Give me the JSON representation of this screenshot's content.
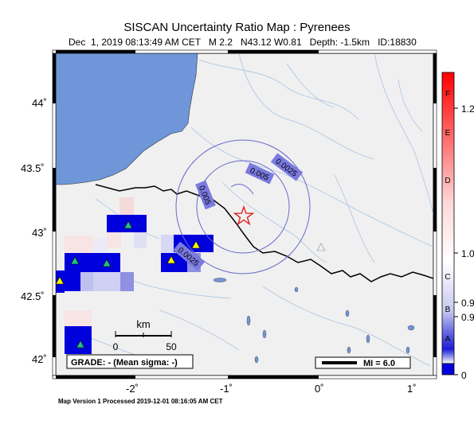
{
  "header": {
    "title": "SISCAN Uncertainty Ratio Map : Pyrenees",
    "date": "Dec  1, 2019 08:13:49 AM CET",
    "magnitude": "M 2.2",
    "location": "N43.12 W0.81",
    "depth": "Depth: -1.5km",
    "id": "ID:18830"
  },
  "axes": {
    "lat_labels": [
      "44˚",
      "43.5˚",
      "43˚",
      "42.5˚",
      "42˚"
    ],
    "lon_labels": [
      "-2˚",
      "-1˚",
      "0˚",
      "1˚"
    ]
  },
  "contours": [
    "0.0025",
    "0.005",
    "0.005",
    "0.0025"
  ],
  "scale_bar": {
    "unit": "km",
    "ticks": [
      "0",
      "50"
    ]
  },
  "grade_box": "GRADE: - (Mean sigma: -)",
  "mi_box": "MI = 6.0",
  "colorbar": {
    "letters": [
      "F",
      "E",
      "D",
      "C",
      "B",
      "A"
    ],
    "values": [
      "1.2",
      "1.0",
      "0.9",
      "0.9",
      "0"
    ]
  },
  "footer": "Map Version 1 Processed 2019-12-01 08:16:05 AM CET",
  "colors": {
    "sea": "#6f96d8",
    "land": "#f0f0f0",
    "river": "#a8c4e4",
    "border": "#000000",
    "blue_cell": "#0000dd",
    "epicenter": "#e02020",
    "station_yellow": "#f5f500",
    "station_green": "#20c080",
    "contour": "#6a6acc"
  }
}
